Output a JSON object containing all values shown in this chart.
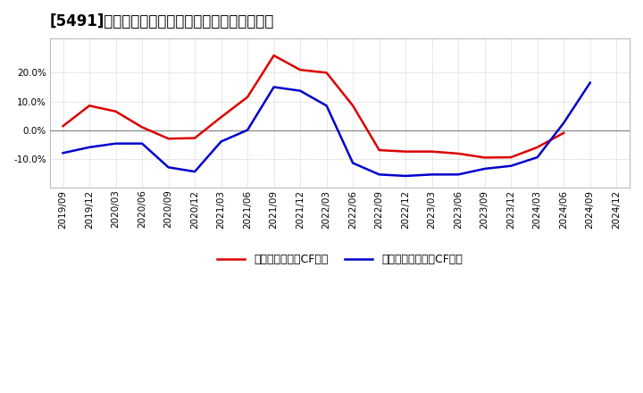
{
  "title": "[5491]　有利子負債キャッシュフロー比率の推移",
  "x_labels": [
    "2019/09",
    "2019/12",
    "2020/03",
    "2020/06",
    "2020/09",
    "2020/12",
    "2021/03",
    "2021/06",
    "2021/09",
    "2021/12",
    "2022/03",
    "2022/06",
    "2022/09",
    "2022/12",
    "2023/03",
    "2023/06",
    "2023/09",
    "2023/12",
    "2024/03",
    "2024/06",
    "2024/09",
    "2024/12"
  ],
  "red_values": [
    0.014,
    0.085,
    0.065,
    0.01,
    -0.03,
    -0.028,
    0.045,
    0.115,
    0.26,
    0.21,
    0.2,
    0.085,
    -0.07,
    -0.075,
    -0.075,
    -0.082,
    -0.096,
    -0.095,
    -0.06,
    -0.01,
    null,
    null
  ],
  "blue_values": [
    -0.08,
    -0.06,
    -0.047,
    -0.047,
    -0.13,
    -0.145,
    -0.04,
    0.0,
    0.15,
    0.137,
    0.085,
    -0.115,
    -0.155,
    -0.16,
    -0.155,
    -0.155,
    -0.135,
    -0.125,
    -0.095,
    0.025,
    0.165,
    null
  ],
  "red_label": "有利子負債営業CF比率",
  "blue_label": "有利子負債フリーCF比率",
  "red_color": "#dd0000",
  "blue_color": "#0000cc",
  "bg_color": "#ffffff",
  "plot_bg_color": "#ffffff",
  "grid_color": "#aaaaaa",
  "zero_line_color": "#888888",
  "ylim": [
    -0.2,
    0.32
  ],
  "yticks": [
    -0.1,
    0.0,
    0.1,
    0.2
  ],
  "title_fontsize": 12,
  "legend_fontsize": 9,
  "tick_fontsize": 7.5
}
